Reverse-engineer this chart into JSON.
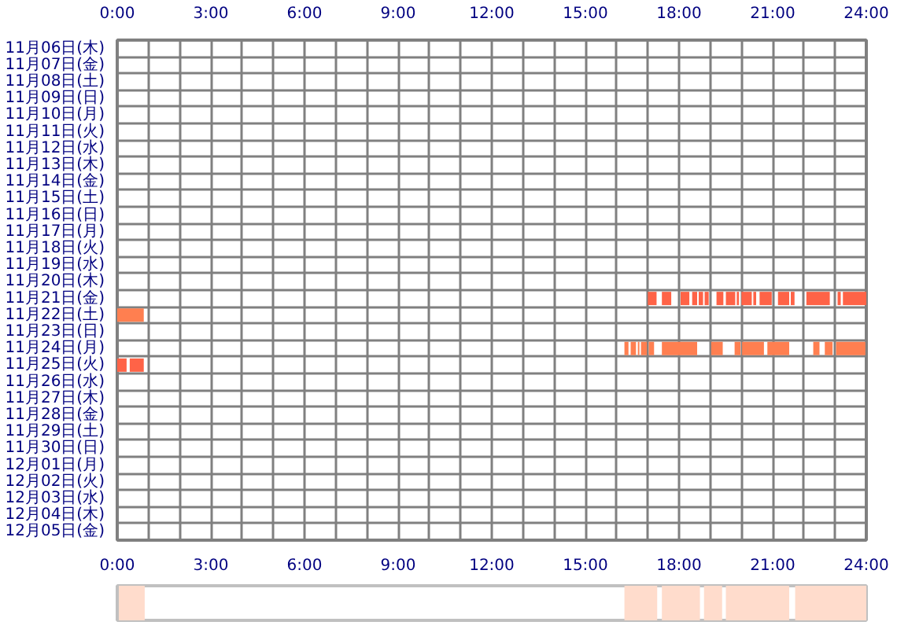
{
  "chart_data": [
    {
      "type": "bar",
      "orientation": "horizontal",
      "grid": true,
      "categories": [
        "11月06日(木)",
        "11月07日(金)",
        "11月08日(土)",
        "11月09日(日)",
        "11月10日(月)",
        "11月11日(火)",
        "11月12日(水)",
        "11月13日(木)",
        "11月14日(金)",
        "11月15日(土)",
        "11月16日(日)",
        "11月17日(月)",
        "11月18日(火)",
        "11月19日(水)",
        "11月20日(木)",
        "11月21日(金)",
        "11月22日(土)",
        "11月23日(日)",
        "11月24日(月)",
        "11月25日(火)",
        "11月26日(水)",
        "11月27日(木)",
        "11月28日(金)",
        "11月29日(土)",
        "11月30日(日)",
        "12月01日(月)",
        "12月02日(火)",
        "12月03日(水)",
        "12月04日(木)",
        "12月05日(金)"
      ],
      "xlim": [
        0,
        24
      ],
      "xticks": [
        {
          "value": 0,
          "label": "0:00"
        },
        {
          "value": 1,
          "label": null
        },
        {
          "value": 2,
          "label": null
        },
        {
          "value": 3,
          "label": "3:00"
        },
        {
          "value": 4,
          "label": null
        },
        {
          "value": 5,
          "label": null
        },
        {
          "value": 6,
          "label": "6:00"
        },
        {
          "value": 7,
          "label": null
        },
        {
          "value": 8,
          "label": null
        },
        {
          "value": 9,
          "label": "9:00"
        },
        {
          "value": 10,
          "label": null
        },
        {
          "value": 11,
          "label": null
        },
        {
          "value": 12,
          "label": "12:00"
        },
        {
          "value": 13,
          "label": null
        },
        {
          "value": 14,
          "label": null
        },
        {
          "value": 15,
          "label": "15:00"
        },
        {
          "value": 16,
          "label": null
        },
        {
          "value": 17,
          "label": null
        },
        {
          "value": 18,
          "label": "18:00"
        },
        {
          "value": 19,
          "label": null
        },
        {
          "value": 20,
          "label": null
        },
        {
          "value": 21,
          "label": "21:00"
        },
        {
          "value": 22,
          "label": null
        },
        {
          "value": 23,
          "label": null
        },
        {
          "value": 24,
          "label": "24:00"
        }
      ],
      "x2lim": [
        0,
        24
      ],
      "x2ticks": [
        {
          "value": 0,
          "label": "0:00"
        },
        {
          "value": 1,
          "label": null
        },
        {
          "value": 2,
          "label": null
        },
        {
          "value": 3,
          "label": "3:00"
        },
        {
          "value": 4,
          "label": null
        },
        {
          "value": 5,
          "label": null
        },
        {
          "value": 6,
          "label": "6:00"
        },
        {
          "value": 7,
          "label": null
        },
        {
          "value": 8,
          "label": null
        },
        {
          "value": 9,
          "label": "9:00"
        },
        {
          "value": 10,
          "label": null
        },
        {
          "value": 11,
          "label": null
        },
        {
          "value": 12,
          "label": "12:00"
        },
        {
          "value": 13,
          "label": null
        },
        {
          "value": 14,
          "label": null
        },
        {
          "value": 15,
          "label": "15:00"
        },
        {
          "value": 16,
          "label": null
        },
        {
          "value": 17,
          "label": null
        },
        {
          "value": 18,
          "label": "18:00"
        },
        {
          "value": 19,
          "label": null
        },
        {
          "value": 20,
          "label": null
        },
        {
          "value": 21,
          "label": "21:00"
        },
        {
          "value": 22,
          "label": null
        },
        {
          "value": 23,
          "label": null
        },
        {
          "value": 24,
          "label": "24:00"
        }
      ],
      "series": [
        {
          "colors": [
            null,
            null,
            null,
            null,
            null,
            null,
            null,
            null,
            null,
            null,
            null,
            null,
            null,
            null,
            null,
            "#ff6347",
            "#ff7f50",
            null,
            "#ff7f50",
            "#ff6347",
            null,
            null,
            null,
            null,
            null,
            null,
            null,
            null,
            null,
            null
          ],
          "values": [
            null,
            null,
            null,
            null,
            null,
            null,
            null,
            null,
            null,
            null,
            null,
            null,
            null,
            null,
            null,
            0.28,
            0.85,
            null,
            0.13,
            0.3,
            null,
            null,
            null,
            null,
            null,
            null,
            null,
            null,
            null,
            null
          ],
          "base": [
            null,
            null,
            null,
            null,
            null,
            null,
            null,
            null,
            null,
            null,
            null,
            null,
            null,
            null,
            null,
            17.0,
            0.0,
            null,
            16.25,
            0.0,
            null,
            null,
            null,
            null,
            null,
            null,
            null,
            null,
            null,
            null
          ]
        },
        {
          "colors": [
            null,
            null,
            null,
            null,
            null,
            null,
            null,
            null,
            null,
            null,
            null,
            null,
            null,
            null,
            null,
            "#ff6347",
            null,
            null,
            "#ff7f50",
            "#ff6347",
            null,
            null,
            null,
            null,
            null,
            null,
            null,
            null,
            null,
            null
          ],
          "values": [
            null,
            null,
            null,
            null,
            null,
            null,
            null,
            null,
            null,
            null,
            null,
            null,
            null,
            null,
            null,
            0.3,
            null,
            null,
            0.17,
            0.45,
            null,
            null,
            null,
            null,
            null,
            null,
            null,
            null,
            null,
            null
          ],
          "base": [
            null,
            null,
            null,
            null,
            null,
            null,
            null,
            null,
            null,
            null,
            null,
            null,
            null,
            null,
            null,
            17.45,
            null,
            null,
            16.45,
            0.4,
            null,
            null,
            null,
            null,
            null,
            null,
            null,
            null,
            null,
            null
          ]
        },
        {
          "colors": [
            null,
            null,
            null,
            null,
            null,
            null,
            null,
            null,
            null,
            null,
            null,
            null,
            null,
            null,
            null,
            "#ff6347",
            null,
            null,
            "#ff7f50",
            null,
            null,
            null,
            null,
            null,
            null,
            null,
            null,
            null,
            null,
            null
          ],
          "values": [
            null,
            null,
            null,
            null,
            null,
            null,
            null,
            null,
            null,
            null,
            null,
            null,
            null,
            null,
            null,
            0.28,
            null,
            null,
            0.05,
            null,
            null,
            null,
            null,
            null,
            null,
            null,
            null,
            null,
            null,
            null
          ],
          "base": [
            null,
            null,
            null,
            null,
            null,
            null,
            null,
            null,
            null,
            null,
            null,
            null,
            null,
            null,
            null,
            18.05,
            null,
            null,
            16.68,
            null,
            null,
            null,
            null,
            null,
            null,
            null,
            null,
            null,
            null,
            null
          ]
        },
        {
          "colors": [
            null,
            null,
            null,
            null,
            null,
            null,
            null,
            null,
            null,
            null,
            null,
            null,
            null,
            null,
            null,
            "#ff6347",
            null,
            null,
            "#ff7f50",
            null,
            null,
            null,
            null,
            null,
            null,
            null,
            null,
            null,
            null,
            null
          ],
          "values": [
            null,
            null,
            null,
            null,
            null,
            null,
            null,
            null,
            null,
            null,
            null,
            null,
            null,
            null,
            null,
            0.16,
            null,
            null,
            0.19,
            null,
            null,
            null,
            null,
            null,
            null,
            null,
            null,
            null,
            null,
            null
          ],
          "base": [
            null,
            null,
            null,
            null,
            null,
            null,
            null,
            null,
            null,
            null,
            null,
            null,
            null,
            null,
            null,
            18.42,
            null,
            null,
            16.78,
            null,
            null,
            null,
            null,
            null,
            null,
            null,
            null,
            null,
            null,
            null
          ]
        },
        {
          "colors": [
            null,
            null,
            null,
            null,
            null,
            null,
            null,
            null,
            null,
            null,
            null,
            null,
            null,
            null,
            null,
            "#ff6347",
            null,
            null,
            "#ff7f50",
            null,
            null,
            null,
            null,
            null,
            null,
            null,
            null,
            null,
            null,
            null
          ],
          "values": [
            null,
            null,
            null,
            null,
            null,
            null,
            null,
            null,
            null,
            null,
            null,
            null,
            null,
            null,
            null,
            0.14,
            null,
            null,
            0.17,
            null,
            null,
            null,
            null,
            null,
            null,
            null,
            null,
            null,
            null,
            null
          ],
          "base": [
            null,
            null,
            null,
            null,
            null,
            null,
            null,
            null,
            null,
            null,
            null,
            null,
            null,
            null,
            null,
            18.63,
            null,
            null,
            17.03,
            null,
            null,
            null,
            null,
            null,
            null,
            null,
            null,
            null,
            null,
            null
          ]
        },
        {
          "colors": [
            null,
            null,
            null,
            null,
            null,
            null,
            null,
            null,
            null,
            null,
            null,
            null,
            null,
            null,
            null,
            "#ff6347",
            null,
            null,
            "#ff7f50",
            null,
            null,
            null,
            null,
            null,
            null,
            null,
            null,
            null,
            null,
            null
          ],
          "values": [
            null,
            null,
            null,
            null,
            null,
            null,
            null,
            null,
            null,
            null,
            null,
            null,
            null,
            null,
            null,
            0.13,
            null,
            null,
            1.13,
            null,
            null,
            null,
            null,
            null,
            null,
            null,
            null,
            null,
            null,
            null
          ],
          "base": [
            null,
            null,
            null,
            null,
            null,
            null,
            null,
            null,
            null,
            null,
            null,
            null,
            null,
            null,
            null,
            18.82,
            null,
            null,
            17.45,
            null,
            null,
            null,
            null,
            null,
            null,
            null,
            null,
            null,
            null,
            null
          ]
        },
        {
          "colors": [
            null,
            null,
            null,
            null,
            null,
            null,
            null,
            null,
            null,
            null,
            null,
            null,
            null,
            null,
            null,
            "#ff6347",
            null,
            null,
            "#ff7f50",
            null,
            null,
            null,
            null,
            null,
            null,
            null,
            null,
            null,
            null,
            null
          ],
          "values": [
            null,
            null,
            null,
            null,
            null,
            null,
            null,
            null,
            null,
            null,
            null,
            null,
            null,
            null,
            null,
            0.22,
            null,
            null,
            0.37,
            null,
            null,
            null,
            null,
            null,
            null,
            null,
            null,
            null,
            null,
            null
          ],
          "base": [
            null,
            null,
            null,
            null,
            null,
            null,
            null,
            null,
            null,
            null,
            null,
            null,
            null,
            null,
            null,
            19.2,
            null,
            null,
            19.03,
            null,
            null,
            null,
            null,
            null,
            null,
            null,
            null,
            null,
            null,
            null
          ]
        },
        {
          "colors": [
            null,
            null,
            null,
            null,
            null,
            null,
            null,
            null,
            null,
            null,
            null,
            null,
            null,
            null,
            null,
            "#ff6347",
            null,
            null,
            "#ff7f50",
            null,
            null,
            null,
            null,
            null,
            null,
            null,
            null,
            null,
            null,
            null
          ],
          "values": [
            null,
            null,
            null,
            null,
            null,
            null,
            null,
            null,
            null,
            null,
            null,
            null,
            null,
            null,
            null,
            0.3,
            null,
            null,
            0.19,
            null,
            null,
            null,
            null,
            null,
            null,
            null,
            null,
            null,
            null,
            null
          ],
          "base": [
            null,
            null,
            null,
            null,
            null,
            null,
            null,
            null,
            null,
            null,
            null,
            null,
            null,
            null,
            null,
            19.5,
            null,
            null,
            19.78,
            null,
            null,
            null,
            null,
            null,
            null,
            null,
            null,
            null,
            null,
            null
          ]
        },
        {
          "colors": [
            null,
            null,
            null,
            null,
            null,
            null,
            null,
            null,
            null,
            null,
            null,
            null,
            null,
            null,
            null,
            "#ff6347",
            null,
            null,
            "#ff7f50",
            null,
            null,
            null,
            null,
            null,
            null,
            null,
            null,
            null,
            null,
            null
          ],
          "values": [
            null,
            null,
            null,
            null,
            null,
            null,
            null,
            null,
            null,
            null,
            null,
            null,
            null,
            null,
            null,
            0.07,
            null,
            null,
            0.7,
            null,
            null,
            null,
            null,
            null,
            null,
            null,
            null,
            null,
            null,
            null
          ],
          "base": [
            null,
            null,
            null,
            null,
            null,
            null,
            null,
            null,
            null,
            null,
            null,
            null,
            null,
            null,
            null,
            19.85,
            null,
            null,
            20.02,
            null,
            null,
            null,
            null,
            null,
            null,
            null,
            null,
            null,
            null,
            null
          ]
        },
        {
          "colors": [
            null,
            null,
            null,
            null,
            null,
            null,
            null,
            null,
            null,
            null,
            null,
            null,
            null,
            null,
            null,
            "#ff6347",
            null,
            null,
            "#ff7f50",
            null,
            null,
            null,
            null,
            null,
            null,
            null,
            null,
            null,
            null,
            null
          ],
          "values": [
            null,
            null,
            null,
            null,
            null,
            null,
            null,
            null,
            null,
            null,
            null,
            null,
            null,
            null,
            null,
            0.33,
            null,
            null,
            0.7,
            null,
            null,
            null,
            null,
            null,
            null,
            null,
            null,
            null,
            null,
            null
          ],
          "base": [
            null,
            null,
            null,
            null,
            null,
            null,
            null,
            null,
            null,
            null,
            null,
            null,
            null,
            null,
            null,
            20.0,
            null,
            null,
            20.83,
            null,
            null,
            null,
            null,
            null,
            null,
            null,
            null,
            null,
            null,
            null
          ]
        },
        {
          "colors": [
            null,
            null,
            null,
            null,
            null,
            null,
            null,
            null,
            null,
            null,
            null,
            null,
            null,
            null,
            null,
            "#ff6347",
            null,
            null,
            "#ff7f50",
            null,
            null,
            null,
            null,
            null,
            null,
            null,
            null,
            null,
            null,
            null
          ],
          "values": [
            null,
            null,
            null,
            null,
            null,
            null,
            null,
            null,
            null,
            null,
            null,
            null,
            null,
            null,
            null,
            0.09,
            null,
            null,
            0.2,
            null,
            null,
            null,
            null,
            null,
            null,
            null,
            null,
            null,
            null,
            null
          ],
          "base": [
            null,
            null,
            null,
            null,
            null,
            null,
            null,
            null,
            null,
            null,
            null,
            null,
            null,
            null,
            null,
            20.38,
            null,
            null,
            22.3,
            null,
            null,
            null,
            null,
            null,
            null,
            null,
            null,
            null,
            null,
            null
          ]
        },
        {
          "colors": [
            null,
            null,
            null,
            null,
            null,
            null,
            null,
            null,
            null,
            null,
            null,
            null,
            null,
            null,
            null,
            "#ff6347",
            null,
            null,
            "#ff7f50",
            null,
            null,
            null,
            null,
            null,
            null,
            null,
            null,
            null,
            null,
            null
          ],
          "values": [
            null,
            null,
            null,
            null,
            null,
            null,
            null,
            null,
            null,
            null,
            null,
            null,
            null,
            null,
            null,
            0.39,
            null,
            null,
            0.25,
            null,
            null,
            null,
            null,
            null,
            null,
            null,
            null,
            null,
            null,
            null
          ],
          "base": [
            null,
            null,
            null,
            null,
            null,
            null,
            null,
            null,
            null,
            null,
            null,
            null,
            null,
            null,
            null,
            20.58,
            null,
            null,
            22.67,
            null,
            null,
            null,
            null,
            null,
            null,
            null,
            null,
            null,
            null,
            null
          ]
        },
        {
          "colors": [
            null,
            null,
            null,
            null,
            null,
            null,
            null,
            null,
            null,
            null,
            null,
            null,
            null,
            null,
            null,
            "#ff6347",
            null,
            null,
            "#ff7f50",
            null,
            null,
            null,
            null,
            null,
            null,
            null,
            null,
            null,
            null,
            null
          ],
          "values": [
            null,
            null,
            null,
            null,
            null,
            null,
            null,
            null,
            null,
            null,
            null,
            null,
            null,
            null,
            null,
            0.36,
            null,
            null,
            0.94,
            null,
            null,
            null,
            null,
            null,
            null,
            null,
            null,
            null,
            null,
            null
          ],
          "base": [
            null,
            null,
            null,
            null,
            null,
            null,
            null,
            null,
            null,
            null,
            null,
            null,
            null,
            null,
            null,
            21.17,
            null,
            null,
            23.03,
            null,
            null,
            null,
            null,
            null,
            null,
            null,
            null,
            null,
            null,
            null
          ]
        },
        {
          "color": "#ff6347",
          "values": [
            null,
            null,
            null,
            null,
            null,
            null,
            null,
            null,
            null,
            null,
            null,
            null,
            null,
            null,
            null,
            0.12,
            null,
            null,
            null,
            null,
            null,
            null,
            null,
            null,
            null,
            null,
            null,
            null,
            null,
            null
          ],
          "base": [
            null,
            null,
            null,
            null,
            null,
            null,
            null,
            null,
            null,
            null,
            null,
            null,
            null,
            null,
            null,
            21.58,
            null,
            null,
            null,
            null,
            null,
            null,
            null,
            null,
            null,
            null,
            null,
            null,
            null,
            null
          ]
        },
        {
          "color": "#ff6347",
          "values": [
            null,
            null,
            null,
            null,
            null,
            null,
            null,
            null,
            null,
            null,
            null,
            null,
            null,
            null,
            null,
            0.75,
            null,
            null,
            null,
            null,
            null,
            null,
            null,
            null,
            null,
            null,
            null,
            null,
            null,
            null
          ],
          "base": [
            null,
            null,
            null,
            null,
            null,
            null,
            null,
            null,
            null,
            null,
            null,
            null,
            null,
            null,
            null,
            22.08,
            null,
            null,
            null,
            null,
            null,
            null,
            null,
            null,
            null,
            null,
            null,
            null,
            null,
            null
          ]
        },
        {
          "color": "#ff6347",
          "values": [
            null,
            null,
            null,
            null,
            null,
            null,
            null,
            null,
            null,
            null,
            null,
            null,
            null,
            null,
            null,
            0.1,
            null,
            null,
            null,
            null,
            null,
            null,
            null,
            null,
            null,
            null,
            null,
            null,
            null,
            null
          ],
          "base": [
            null,
            null,
            null,
            null,
            null,
            null,
            null,
            null,
            null,
            null,
            null,
            null,
            null,
            null,
            null,
            23.08,
            null,
            null,
            null,
            null,
            null,
            null,
            null,
            null,
            null,
            null,
            null,
            null,
            null,
            null
          ]
        },
        {
          "color": "#ff6347",
          "values": [
            null,
            null,
            null,
            null,
            null,
            null,
            null,
            null,
            null,
            null,
            null,
            null,
            null,
            null,
            null,
            0.75,
            null,
            null,
            null,
            null,
            null,
            null,
            null,
            null,
            null,
            null,
            null,
            null,
            null,
            null
          ],
          "base": [
            null,
            null,
            null,
            null,
            null,
            null,
            null,
            null,
            null,
            null,
            null,
            null,
            null,
            null,
            null,
            23.25,
            null,
            null,
            null,
            null,
            null,
            null,
            null,
            null,
            null,
            null,
            null,
            null,
            null,
            null
          ]
        }
      ]
    },
    {
      "type": "bar",
      "orientation": "horizontal",
      "categories": [
        null
      ],
      "xlim": [
        0,
        24
      ],
      "series": [
        {
          "color": "#ffdccc",
          "values": [
            0.83
          ],
          "base": [
            0.05
          ]
        },
        {
          "color": "#ffdccc",
          "values": [
            1.05
          ],
          "base": [
            16.25
          ]
        },
        {
          "color": "#ffdccc",
          "values": [
            1.22
          ],
          "base": [
            17.45
          ]
        },
        {
          "color": "#ffdccc",
          "values": [
            0.58
          ],
          "base": [
            18.8
          ]
        },
        {
          "color": "#ffdccc",
          "values": [
            2.03
          ],
          "base": [
            19.5
          ]
        },
        {
          "color": "#ffdccc",
          "values": [
            2.28
          ],
          "base": [
            21.72
          ]
        }
      ]
    }
  ]
}
